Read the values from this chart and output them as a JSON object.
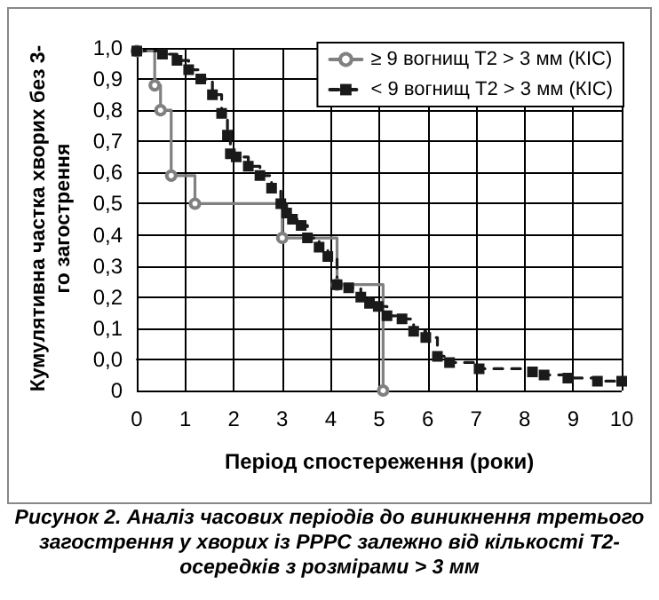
{
  "chart_data": {
    "type": "step",
    "xlabel": "Період спостереження (роки)",
    "ylabel": "Кумулятивна частка хворих без 3-го загострення",
    "xlim": [
      0,
      10
    ],
    "xticks": [
      0,
      1,
      2,
      3,
      4,
      5,
      6,
      7,
      8,
      9,
      10
    ],
    "ylim": [
      -0.1,
      1.0
    ],
    "yticks": [
      {
        "value": -0.1,
        "label": "0"
      },
      {
        "value": 0.0,
        "label": "0,0"
      },
      {
        "value": 0.1,
        "label": "0,1"
      },
      {
        "value": 0.2,
        "label": "0,2"
      },
      {
        "value": 0.3,
        "label": "0,3"
      },
      {
        "value": 0.4,
        "label": "0,4"
      },
      {
        "value": 0.5,
        "label": "0,5"
      },
      {
        "value": 0.6,
        "label": "0,6"
      },
      {
        "value": 0.7,
        "label": "0,7"
      },
      {
        "value": 0.8,
        "label": "0,8"
      },
      {
        "value": 0.9,
        "label": "0,9"
      },
      {
        "value": 1.0,
        "label": "1,0"
      }
    ],
    "grid": true,
    "legend": "top right",
    "series": [
      {
        "name": "≥ 9 вогнищ Т2 > 3 мм (КІС)",
        "color": "#808080",
        "marker": "circle",
        "line_style": "solid",
        "x": [
          0,
          0.37,
          0.49,
          0.71,
          1.2,
          3.0,
          4.13,
          5.08
        ],
        "values": [
          0.99,
          0.88,
          0.8,
          0.59,
          0.5,
          0.39,
          0.24,
          -0.1
        ]
      },
      {
        "name": "< 9 вогнищ Т2 > 3 мм (КІС)",
        "color": "#1a1a1a",
        "marker": "square",
        "line_style": "dashed",
        "x": [
          0,
          0.53,
          0.83,
          1.07,
          1.32,
          1.56,
          1.75,
          1.87,
          1.93,
          2.05,
          2.3,
          2.54,
          2.78,
          2.97,
          3.09,
          3.21,
          3.39,
          3.52,
          3.76,
          3.94,
          4.13,
          4.37,
          4.62,
          4.8,
          4.98,
          5.16,
          5.47,
          5.71,
          5.96,
          6.2,
          6.45,
          7.06,
          8.16,
          8.4,
          8.89,
          9.5,
          10
        ],
        "values": [
          0.99,
          0.98,
          0.96,
          0.93,
          0.9,
          0.85,
          0.79,
          0.72,
          0.66,
          0.65,
          0.62,
          0.59,
          0.55,
          0.5,
          0.47,
          0.45,
          0.43,
          0.39,
          0.36,
          0.33,
          0.24,
          0.23,
          0.2,
          0.18,
          0.17,
          0.14,
          0.13,
          0.09,
          0.07,
          0.01,
          -0.01,
          -0.03,
          -0.04,
          -0.05,
          -0.06,
          -0.07,
          -0.07
        ]
      }
    ],
    "annotations": [
      "Рисунок 2. Аналіз часових періодів до виникнення третього загострення у хворих із PPPC залежно від кількості Т2-осередків з розмірами > 3 мм"
    ]
  }
}
